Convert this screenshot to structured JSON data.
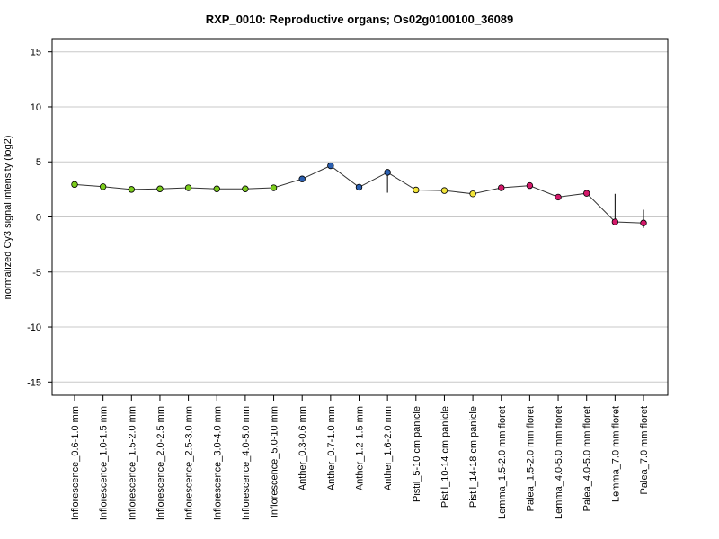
{
  "chart_data": {
    "type": "line",
    "title": "RXP_0010: Reproductive organs; Os02g0100100_36089",
    "xlabel": "",
    "ylabel": "normalized Cy3 signal intensity (log2)",
    "ylim": [
      -16.2,
      16.2
    ],
    "yticks": [
      -15,
      -10,
      -5,
      0,
      5,
      10,
      15
    ],
    "grid": true,
    "categories": [
      "Inflorescence_0.6-1.0 mm",
      "Inflorescence_1.0-1.5 mm",
      "Inflorescence_1.5-2.0 mm",
      "Inflorescence_2.0-2.5 mm",
      "Inflorescence_2.5-3.0 mm",
      "Inflorescence_3.0-4.0 mm",
      "Inflorescence_4.0-5.0 mm",
      "Inflorescence_5.0-10 mm",
      "Anther_0.3-0.6 mm",
      "Anther_0.7-1.0 mm",
      "Anther_1.2-1.5 mm",
      "Anther_1.6-2.0 mm",
      "Pistil_5-10 cm panicle",
      "Pistil_10-14 cm panicle",
      "Pistil_14-18 cm panicle",
      "Lemma_1.5-2.0 mm floret",
      "Palea_1.5-2.0 mm floret",
      "Lemma_4.0-5.0 mm floret",
      "Palea_4.0-5.0 mm floret",
      "Lemma_7.0 mm floret",
      "Palea_7.0 mm floret"
    ],
    "values": [
      2.95,
      2.75,
      2.5,
      2.55,
      2.65,
      2.55,
      2.55,
      2.65,
      3.45,
      4.65,
      2.7,
      4.05,
      2.45,
      2.4,
      2.1,
      2.65,
      2.85,
      1.8,
      2.15,
      -0.45,
      -0.55
    ],
    "error_low": [
      null,
      null,
      null,
      null,
      null,
      null,
      null,
      null,
      null,
      null,
      2.55,
      2.2,
      null,
      null,
      null,
      null,
      null,
      null,
      null,
      -0.55,
      -1.0
    ],
    "error_high": [
      null,
      null,
      null,
      null,
      null,
      null,
      null,
      null,
      null,
      null,
      2.75,
      4.05,
      null,
      null,
      null,
      null,
      null,
      null,
      null,
      2.1,
      0.65
    ],
    "point_colors": [
      "#7ccd1c",
      "#7ccd1c",
      "#7ccd1c",
      "#7ccd1c",
      "#7ccd1c",
      "#7ccd1c",
      "#7ccd1c",
      "#7ccd1c",
      "#2b5fb0",
      "#2b5fb0",
      "#2b5fb0",
      "#2b5fb0",
      "#f2e53a",
      "#f2e53a",
      "#f2e53a",
      "#d4196a",
      "#d4196a",
      "#d4196a",
      "#d4196a",
      "#d4196a",
      "#d4196a"
    ],
    "line_color": "#333333",
    "grid_color": "#c8c8c8"
  }
}
